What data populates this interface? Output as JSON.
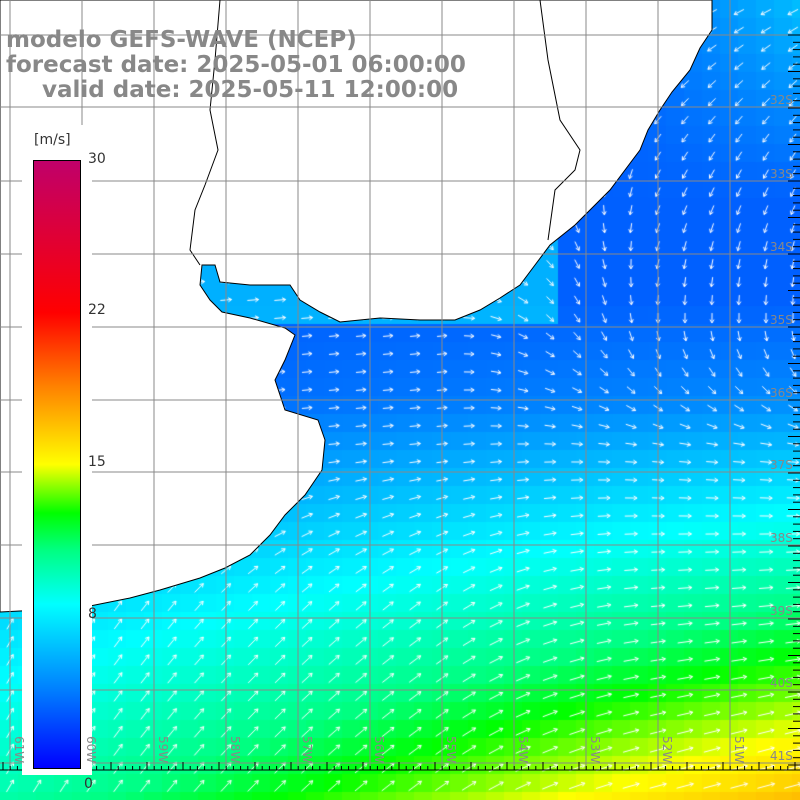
{
  "title": {
    "line1": "modelo GEFS-WAVE (NCEP)",
    "line2": "forecast date: 2025-05-01 06:00:00",
    "line3": "valid date: 2025-05-11 12:00:00"
  },
  "colorbar": {
    "unit": "[m/s]",
    "labels": [
      "30",
      "22",
      "15",
      "8",
      "0"
    ],
    "min": 0,
    "max": 30
  },
  "axes": {
    "lon_labels": [
      "61W",
      "60W",
      "59W",
      "58W",
      "57W",
      "56W",
      "55W",
      "54W",
      "53W",
      "52W",
      "51W"
    ],
    "lat_labels": [
      "32S",
      "33S",
      "34S",
      "35S",
      "36S",
      "37S",
      "38S",
      "39S",
      "40S",
      "41S"
    ]
  },
  "colors": {
    "land": "#ffffff",
    "grid": "#888888",
    "coast": "#000000"
  }
}
